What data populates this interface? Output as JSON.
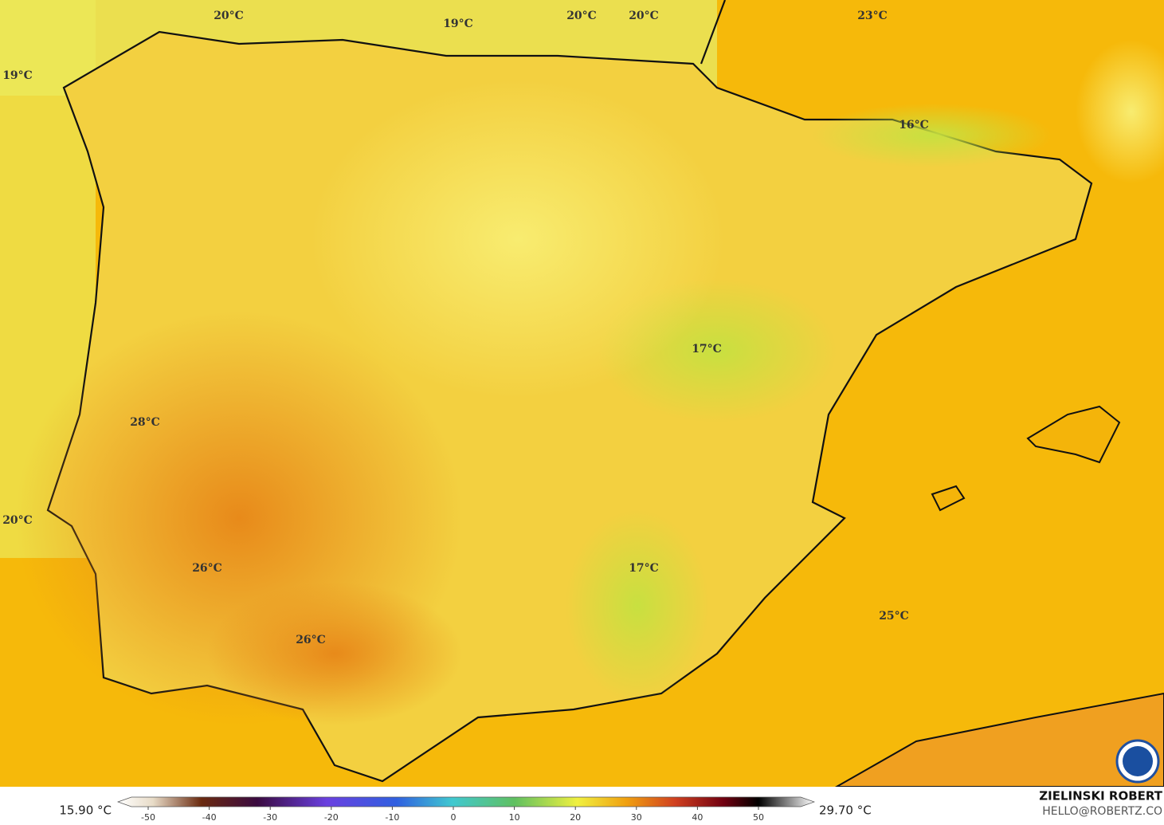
{
  "map": {
    "labels": [
      "20°C",
      "19°C",
      "20°C",
      "20°C",
      "23°C",
      "19°C",
      "16°C",
      "17°C",
      "28°C",
      "20°C",
      "26°C",
      "17°C",
      "25°C",
      "26°C"
    ]
  },
  "colorbar": {
    "min_label": "15.90 °C",
    "max_label": "29.70 °C",
    "ticks": [
      -50,
      -40,
      -30,
      -20,
      -10,
      0,
      10,
      20,
      30,
      40,
      50
    ]
  },
  "credit": {
    "author": "ZIELINSKI ROBERT",
    "email": "HELLO@ROBERTZ.CO"
  }
}
